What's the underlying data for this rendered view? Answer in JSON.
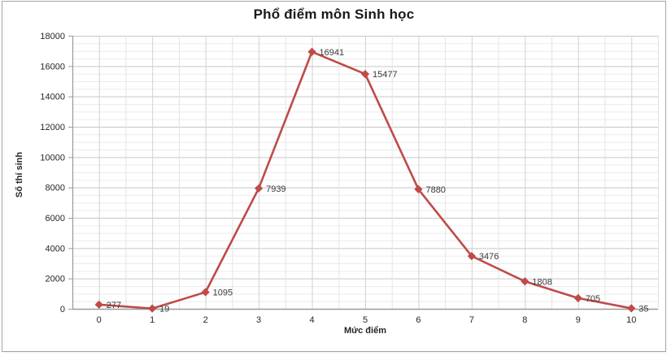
{
  "chart_data": {
    "type": "line",
    "title": "Phổ điểm môn Sinh học",
    "xlabel": "Mức điểm",
    "ylabel": "Số thí sinh",
    "categories": [
      "0",
      "1",
      "2",
      "3",
      "4",
      "5",
      "6",
      "7",
      "8",
      "9",
      "10"
    ],
    "values": [
      277,
      19,
      1095,
      7939,
      16941,
      15477,
      7880,
      3476,
      1808,
      705,
      35
    ],
    "data_labels": [
      "277",
      "19",
      "1095",
      "7939",
      "16941",
      "15477",
      "7880",
      "3476",
      "1808",
      "705",
      "35"
    ],
    "ylim": [
      0,
      18000
    ],
    "y_major_step": 2000,
    "y_minor_step": 500,
    "y_tick_labels": [
      "0",
      "2000",
      "4000",
      "6000",
      "8000",
      "10000",
      "12000",
      "14000",
      "16000",
      "18000"
    ],
    "x_tick_labels": [
      "0",
      "1",
      "2",
      "3",
      "4",
      "5",
      "6",
      "7",
      "8",
      "9",
      "10"
    ],
    "legend": "none",
    "grid": true,
    "marker": "diamond",
    "colors": {
      "series": "#be4b48",
      "h_major_grid": "#c6c6c6",
      "h_minor_grid": "#ebebeb",
      "v_center_grid": "#d2d2d2",
      "v_boundary_grid": "#e4e4e4",
      "axis": "#9a9a9a",
      "tick_text": "#262626",
      "label_text": "#3a3a3a"
    }
  }
}
